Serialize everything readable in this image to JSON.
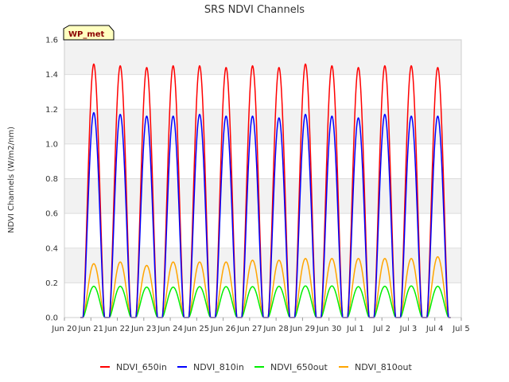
{
  "chart_data": {
    "type": "line",
    "title": "SRS NDVI Channels",
    "ylabel": "NDVI Channels (W/m2/nm)",
    "xlabel": "",
    "station_badge": "WP_met",
    "ylim": [
      0,
      1.6
    ],
    "xlim": [
      0,
      15
    ],
    "grid": true,
    "legend_position": "bottom",
    "yticks": [
      0.0,
      0.2,
      0.4,
      0.6,
      0.8,
      1.0,
      1.2,
      1.4,
      1.6
    ],
    "ytick_labels": [
      "0.0",
      "0.2",
      "0.4",
      "0.6",
      "0.8",
      "1.0",
      "1.2",
      "1.4",
      "1.6"
    ],
    "xticks": [
      0,
      1,
      2,
      3,
      4,
      5,
      6,
      7,
      8,
      9,
      10,
      11,
      12,
      13,
      14,
      15
    ],
    "xtick_labels": [
      "Jun 20",
      "Jun 21",
      "Jun 22",
      "Jun 23",
      "Jun 24",
      "Jun 25",
      "Jun 26",
      "Jun 27",
      "Jun 28",
      "Jun 29",
      "Jun 30",
      "Jul 1",
      "Jul 2",
      "Jul 3",
      "Jul 4",
      "Jul 5"
    ],
    "day_start": 0.6,
    "series": [
      {
        "name": "NDVI_650in",
        "color": "#ff0000",
        "daily_peaks": [
          1.46,
          1.45,
          1.44,
          1.45,
          1.45,
          1.44,
          1.45,
          1.44,
          1.46,
          1.45,
          1.44,
          1.45,
          1.45,
          1.44
        ]
      },
      {
        "name": "NDVI_810in",
        "color": "#0000ff",
        "daily_peaks": [
          1.18,
          1.17,
          1.16,
          1.16,
          1.17,
          1.16,
          1.16,
          1.15,
          1.17,
          1.16,
          1.15,
          1.17,
          1.16,
          1.16
        ]
      },
      {
        "name": "NDVI_650out",
        "color": "#00ee00",
        "daily_peaks": [
          0.18,
          0.18,
          0.175,
          0.175,
          0.178,
          0.178,
          0.178,
          0.18,
          0.182,
          0.182,
          0.178,
          0.18,
          0.182,
          0.18
        ]
      },
      {
        "name": "NDVI_810out",
        "color": "#ffa500",
        "daily_peaks": [
          0.31,
          0.32,
          0.3,
          0.32,
          0.32,
          0.32,
          0.33,
          0.33,
          0.34,
          0.34,
          0.34,
          0.34,
          0.34,
          0.35
        ]
      }
    ]
  }
}
